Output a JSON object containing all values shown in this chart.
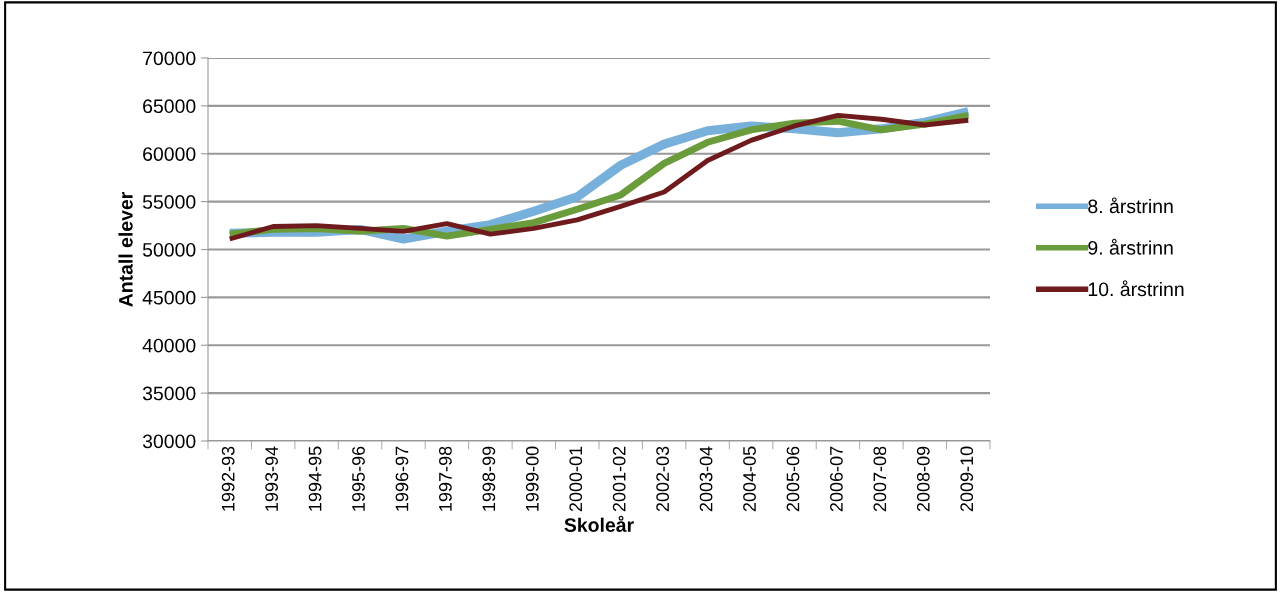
{
  "chart_data": {
    "type": "line",
    "xlabel": "Skoleår",
    "ylabel": "Antall elever",
    "categories": [
      "1992-93",
      "1993-94",
      "1994-95",
      "1995-96",
      "1996-97",
      "1997-98",
      "1998-99",
      "1999-00",
      "2000-01",
      "2001-02",
      "2002-03",
      "2003-04",
      "2004-05",
      "2005-06",
      "2006-07",
      "2007-08",
      "2008-09",
      "2009-10"
    ],
    "series": [
      {
        "name": "8. årstrinn",
        "color": "#77b0da",
        "values": [
          51700,
          51800,
          51800,
          52100,
          51100,
          51900,
          52600,
          54000,
          55500,
          58800,
          61000,
          62400,
          62900,
          62600,
          62200,
          62600,
          63300,
          64400
        ]
      },
      {
        "name": "9. årstrinn",
        "color": "#6a9c3c",
        "values": [
          51600,
          52100,
          52200,
          51900,
          52200,
          51400,
          52100,
          52800,
          54200,
          55700,
          59000,
          61200,
          62500,
          63200,
          63400,
          62500,
          63100,
          64000
        ]
      },
      {
        "name": "10. årstrinn",
        "color": "#6f1a1c",
        "values": [
          51100,
          52400,
          52500,
          52200,
          51900,
          52700,
          51600,
          52200,
          53100,
          54500,
          56000,
          59300,
          61400,
          62900,
          64000,
          63600,
          63000,
          63500
        ]
      }
    ],
    "ylim": [
      30000,
      70000
    ],
    "yticks": [
      30000,
      35000,
      40000,
      45000,
      50000,
      55000,
      60000,
      65000,
      70000
    ],
    "grid": "y",
    "legend": "right",
    "marker": "none",
    "line_style": "solid"
  }
}
